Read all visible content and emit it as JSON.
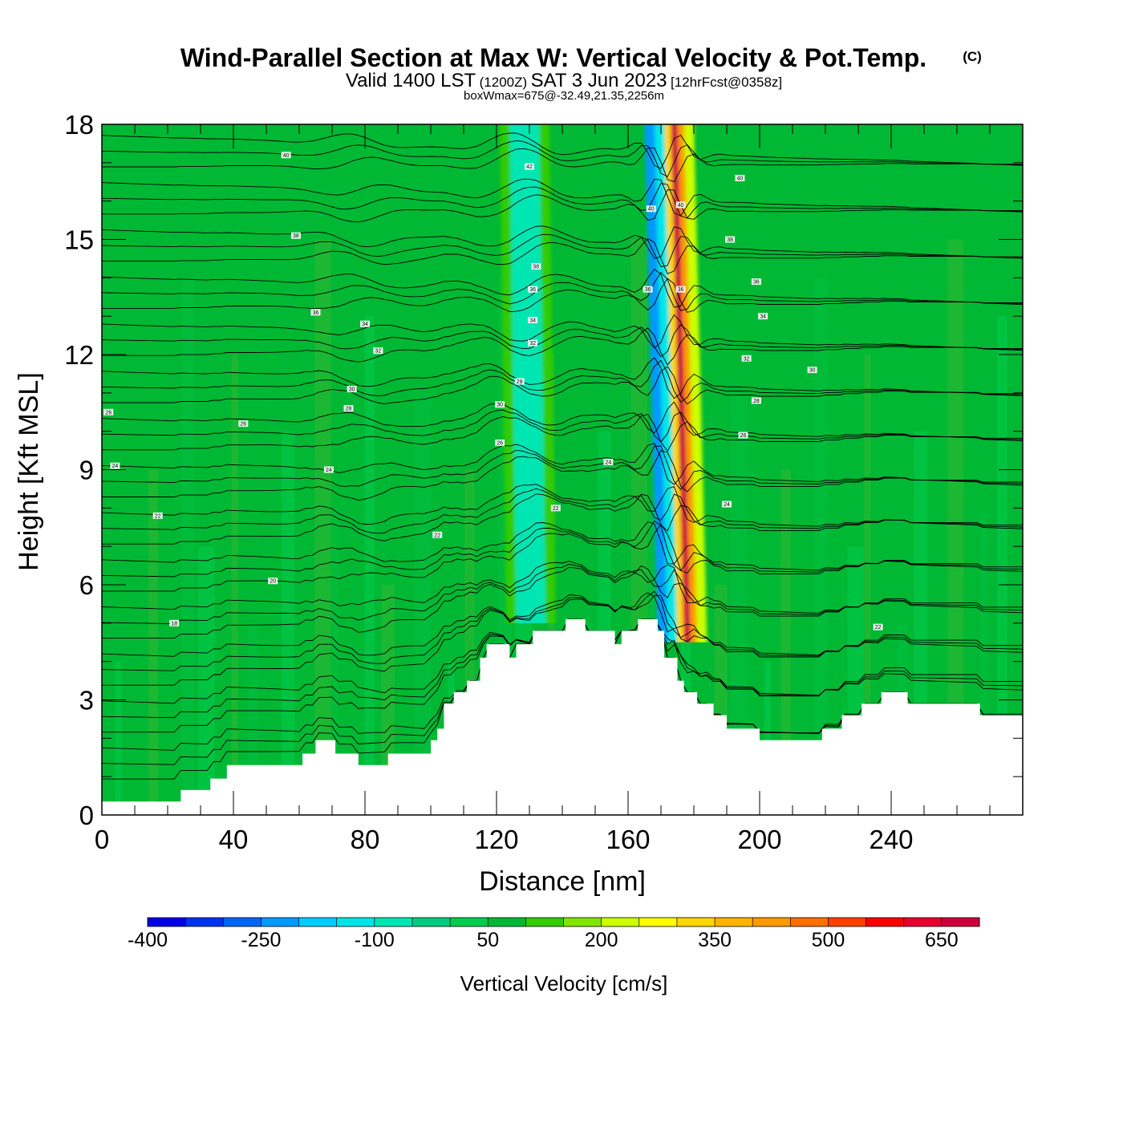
{
  "chart_data": {
    "type": "heatmap",
    "title": "Wind-Parallel Section at Max W: Vertical Velocity & Pot.Temp.",
    "title_mark": "(C)",
    "subtitle": {
      "prefix": "Valid 1400 LST",
      "zulu": "(1200Z)",
      "date": "SAT 3 Jun 2023",
      "forecast": "[12hrFcst@0358z]"
    },
    "box_info": "boxWmax=675@-32.49,21.35,2256m",
    "xlabel": "Distance [nm]",
    "ylabel": "Height [Kft MSL]",
    "xlim": [
      0,
      280
    ],
    "ylim": [
      0,
      18
    ],
    "x_ticks": [
      "0",
      "40",
      "80",
      "120",
      "160",
      "200",
      "240"
    ],
    "y_ticks": [
      "0",
      "3",
      "6",
      "9",
      "12",
      "15",
      "18"
    ],
    "colorbar": {
      "title": "Vertical Velocity [cm/s]",
      "labels": [
        "-400",
        "-250",
        "-100",
        "50",
        "200",
        "350",
        "500",
        "650"
      ],
      "colors": [
        "#0000e6",
        "#0033f0",
        "#0066f5",
        "#0099ff",
        "#00ccff",
        "#00e6e6",
        "#00e6b3",
        "#00cc80",
        "#00cc4d",
        "#00b833",
        "#33cc00",
        "#80e600",
        "#ccff00",
        "#ffff00",
        "#ffd700",
        "#ffb300",
        "#ff9900",
        "#ff7000",
        "#ff4000",
        "#ff0000",
        "#e6002e",
        "#cc003d"
      ]
    },
    "vertical_velocity_bands": [
      {
        "x_start": 121,
        "x_end": 124,
        "value": 100
      },
      {
        "x_start": 124,
        "x_end": 133,
        "value": -75
      },
      {
        "x_start": 133,
        "x_end": 136,
        "value": 100
      },
      {
        "x_start": 165,
        "x_end": 168,
        "value": -250
      },
      {
        "x_start": 168,
        "x_end": 171,
        "value": -150
      },
      {
        "x_start": 171,
        "x_end": 173,
        "value": 300
      },
      {
        "x_start": 173,
        "x_end": 175,
        "value": 650
      },
      {
        "x_start": 175,
        "x_end": 177,
        "value": 400
      },
      {
        "x_start": 177,
        "x_end": 180,
        "value": 200
      }
    ],
    "terrain": [
      [
        0,
        0.35
      ],
      [
        24,
        0.35
      ],
      [
        24,
        0.65
      ],
      [
        33,
        0.65
      ],
      [
        33,
        0.95
      ],
      [
        38,
        0.95
      ],
      [
        38,
        1.3
      ],
      [
        61,
        1.3
      ],
      [
        61,
        1.6
      ],
      [
        65,
        1.6
      ],
      [
        65,
        1.95
      ],
      [
        71,
        1.95
      ],
      [
        71,
        1.6
      ],
      [
        78,
        1.6
      ],
      [
        78,
        1.3
      ],
      [
        87,
        1.3
      ],
      [
        87,
        1.6
      ],
      [
        100,
        1.6
      ],
      [
        100,
        1.95
      ],
      [
        102,
        1.95
      ],
      [
        102,
        2.25
      ],
      [
        104,
        2.25
      ],
      [
        104,
        2.9
      ],
      [
        107,
        2.9
      ],
      [
        107,
        3.2
      ],
      [
        111,
        3.2
      ],
      [
        111,
        3.5
      ],
      [
        115,
        3.5
      ],
      [
        115,
        4.1
      ],
      [
        117,
        4.1
      ],
      [
        117,
        4.45
      ],
      [
        124,
        4.45
      ],
      [
        124,
        4.1
      ],
      [
        126,
        4.1
      ],
      [
        126,
        4.45
      ],
      [
        131,
        4.45
      ],
      [
        131,
        4.8
      ],
      [
        141,
        4.8
      ],
      [
        141,
        5.1
      ],
      [
        147,
        5.1
      ],
      [
        147,
        4.8
      ],
      [
        156,
        4.8
      ],
      [
        156,
        4.45
      ],
      [
        158,
        4.45
      ],
      [
        158,
        4.8
      ],
      [
        163,
        4.8
      ],
      [
        163,
        5.1
      ],
      [
        169,
        5.1
      ],
      [
        169,
        4.8
      ],
      [
        171,
        4.8
      ],
      [
        171,
        4.1
      ],
      [
        175,
        4.1
      ],
      [
        175,
        3.5
      ],
      [
        177,
        3.5
      ],
      [
        177,
        3.2
      ],
      [
        181,
        3.2
      ],
      [
        181,
        2.9
      ],
      [
        186,
        2.9
      ],
      [
        186,
        2.6
      ],
      [
        190,
        2.6
      ],
      [
        190,
        2.25
      ],
      [
        200,
        2.25
      ],
      [
        200,
        1.95
      ],
      [
        219,
        1.95
      ],
      [
        219,
        2.25
      ],
      [
        225,
        2.25
      ],
      [
        225,
        2.6
      ],
      [
        231,
        2.6
      ],
      [
        231,
        2.9
      ],
      [
        237,
        2.9
      ],
      [
        237,
        3.2
      ],
      [
        245,
        3.2
      ],
      [
        245,
        2.9
      ],
      [
        267,
        2.9
      ],
      [
        267,
        2.6
      ],
      [
        280,
        2.6
      ]
    ],
    "theta_contours": {
      "levels": [
        16,
        18,
        20,
        22,
        24,
        26,
        28,
        30,
        32,
        34,
        36,
        38,
        40,
        42,
        44,
        46
      ],
      "labels": [
        {
          "text": "40",
          "x": 56,
          "y": 17.2
        },
        {
          "text": "42",
          "x": 130,
          "y": 16.9
        },
        {
          "text": "40",
          "x": 167,
          "y": 15.8
        },
        {
          "text": "40",
          "x": 176,
          "y": 15.9
        },
        {
          "text": "40",
          "x": 194,
          "y": 16.6
        },
        {
          "text": "38",
          "x": 59,
          "y": 15.1
        },
        {
          "text": "38",
          "x": 191,
          "y": 15.0
        },
        {
          "text": "38",
          "x": 132,
          "y": 14.3
        },
        {
          "text": "36",
          "x": 131,
          "y": 13.7
        },
        {
          "text": "36",
          "x": 166,
          "y": 13.7
        },
        {
          "text": "36",
          "x": 176,
          "y": 13.7
        },
        {
          "text": "36",
          "x": 199,
          "y": 13.9
        },
        {
          "text": "36",
          "x": 65,
          "y": 13.1
        },
        {
          "text": "34",
          "x": 201,
          "y": 13.0
        },
        {
          "text": "34",
          "x": 80,
          "y": 12.8
        },
        {
          "text": "34",
          "x": 131,
          "y": 12.9
        },
        {
          "text": "32",
          "x": 131,
          "y": 12.3
        },
        {
          "text": "32",
          "x": 84,
          "y": 12.1
        },
        {
          "text": "32",
          "x": 196,
          "y": 11.9
        },
        {
          "text": "30",
          "x": 216,
          "y": 11.6
        },
        {
          "text": "30",
          "x": 76,
          "y": 11.1
        },
        {
          "text": "30",
          "x": 121,
          "y": 10.7
        },
        {
          "text": "28",
          "x": 75,
          "y": 10.6
        },
        {
          "text": "28",
          "x": 127,
          "y": 11.3
        },
        {
          "text": "28",
          "x": 199,
          "y": 10.8
        },
        {
          "text": "26",
          "x": 2,
          "y": 10.5
        },
        {
          "text": "26",
          "x": 43,
          "y": 10.2
        },
        {
          "text": "26",
          "x": 121,
          "y": 9.7
        },
        {
          "text": "26",
          "x": 195,
          "y": 9.9
        },
        {
          "text": "24",
          "x": 4,
          "y": 9.1
        },
        {
          "text": "24",
          "x": 69,
          "y": 9.0
        },
        {
          "text": "24",
          "x": 154,
          "y": 9.2
        },
        {
          "text": "24",
          "x": 190,
          "y": 8.1
        },
        {
          "text": "22",
          "x": 17,
          "y": 7.8
        },
        {
          "text": "22",
          "x": 102,
          "y": 7.3
        },
        {
          "text": "22",
          "x": 138,
          "y": 8.0
        },
        {
          "text": "20",
          "x": 52,
          "y": 6.1
        },
        {
          "text": "18",
          "x": 22,
          "y": 5.0
        },
        {
          "text": "22",
          "x": 236,
          "y": 4.9
        }
      ]
    }
  }
}
